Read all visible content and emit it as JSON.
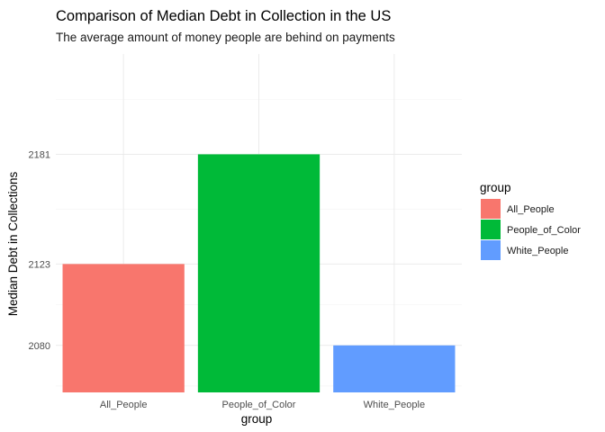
{
  "chart_data": {
    "type": "bar",
    "title": "Comparison of Median Debt in Collection in the US",
    "subtitle": "The average amount of money people are behind on payments",
    "xlabel": "group",
    "ylabel": "Median Debt in Collections",
    "categories": [
      "All_People",
      "People_of_Color",
      "White_People"
    ],
    "values": [
      2123,
      2181,
      2080
    ],
    "colors": [
      "#F8766D",
      "#00BA38",
      "#619CFF"
    ],
    "yticks": [
      "2181",
      "2123",
      "2080"
    ],
    "grid": true,
    "legend": {
      "title": "group",
      "position": "right",
      "entries": [
        "All_People",
        "People_of_Color",
        "White_People"
      ]
    }
  }
}
